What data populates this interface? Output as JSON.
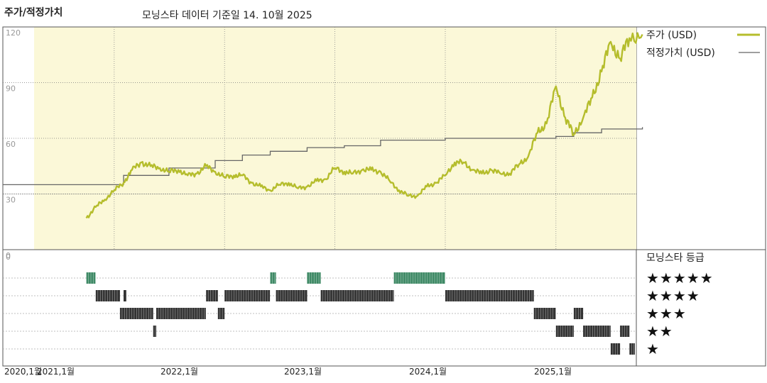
{
  "header": {
    "title": "주가/적정가치",
    "subtitle": "모닝스타 데이터 기준일 14. 10월 2025"
  },
  "legend": {
    "price_label": "주가 (USD)",
    "fair_label": "적정가치 (USD)",
    "rating_title": "모닝스타 등급",
    "stars": [
      "★★★★★",
      "★★★★",
      "★★★",
      "★★",
      "★"
    ]
  },
  "colors": {
    "price": "#b5bd2c",
    "fair": "#666666",
    "plot_bg": "#fbf8d8",
    "rating5": "#3f8a66",
    "rating_other": "#333333"
  },
  "chart_data": {
    "type": "line",
    "x_ticks": [
      "2020,1월",
      "2021,1월",
      "2022,1월",
      "2023,1월",
      "2024,1월",
      "2025,1월"
    ],
    "y_ticks": [
      0,
      30,
      60,
      90,
      120
    ],
    "ylim": [
      0,
      120
    ],
    "grid": true,
    "series": [
      {
        "name": "주가 (USD)",
        "points": [
          [
            "2020-10-01",
            17
          ],
          [
            "2020-11-01",
            23
          ],
          [
            "2020-12-01",
            27
          ],
          [
            "2021-01-01",
            32
          ],
          [
            "2021-02-01",
            36
          ],
          [
            "2021-03-01",
            43
          ],
          [
            "2021-04-01",
            47
          ],
          [
            "2021-05-01",
            45
          ],
          [
            "2021-06-01",
            44
          ],
          [
            "2021-07-01",
            42
          ],
          [
            "2021-08-01",
            43
          ],
          [
            "2021-09-01",
            40
          ],
          [
            "2021-10-01",
            41
          ],
          [
            "2021-11-01",
            45
          ],
          [
            "2021-12-01",
            42
          ],
          [
            "2022-01-01",
            39
          ],
          [
            "2022-02-01",
            40
          ],
          [
            "2022-03-01",
            40
          ],
          [
            "2022-04-01",
            36
          ],
          [
            "2022-05-01",
            34
          ],
          [
            "2022-06-01",
            32
          ],
          [
            "2022-07-01",
            35
          ],
          [
            "2022-08-01",
            36
          ],
          [
            "2022-09-01",
            33
          ],
          [
            "2022-10-01",
            34
          ],
          [
            "2022-11-01",
            37
          ],
          [
            "2022-12-01",
            38
          ],
          [
            "2023-01-01",
            44
          ],
          [
            "2023-02-01",
            42
          ],
          [
            "2023-03-01",
            41
          ],
          [
            "2023-04-01",
            43
          ],
          [
            "2023-05-01",
            43
          ],
          [
            "2023-06-01",
            42
          ],
          [
            "2023-07-01",
            37
          ],
          [
            "2023-08-01",
            32
          ],
          [
            "2023-09-01",
            29
          ],
          [
            "2023-10-01",
            29
          ],
          [
            "2023-11-01",
            34
          ],
          [
            "2023-12-01",
            36
          ],
          [
            "2024-01-01",
            40
          ],
          [
            "2024-02-01",
            47
          ],
          [
            "2024-03-01",
            47
          ],
          [
            "2024-04-01",
            43
          ],
          [
            "2024-05-01",
            41
          ],
          [
            "2024-06-01",
            43
          ],
          [
            "2024-07-01",
            41
          ],
          [
            "2024-08-01",
            41
          ],
          [
            "2024-09-01",
            46
          ],
          [
            "2024-10-01",
            50
          ],
          [
            "2024-11-01",
            63
          ],
          [
            "2024-12-01",
            68
          ],
          [
            "2025-01-01",
            88
          ],
          [
            "2025-02-01",
            71
          ],
          [
            "2025-03-01",
            62
          ],
          [
            "2025-04-01",
            71
          ],
          [
            "2025-05-01",
            82
          ],
          [
            "2025-06-01",
            96
          ],
          [
            "2025-07-01",
            112
          ],
          [
            "2025-08-01",
            103
          ],
          [
            "2025-09-01",
            114
          ],
          [
            "2025-10-14",
            116
          ]
        ]
      },
      {
        "name": "적정가치 (USD)",
        "step": true,
        "points": [
          [
            "2020-10-01",
            35
          ],
          [
            "2021-02-01",
            40
          ],
          [
            "2021-07-01",
            44
          ],
          [
            "2021-12-01",
            48
          ],
          [
            "2022-03-01",
            51
          ],
          [
            "2022-06-01",
            53
          ],
          [
            "2022-10-01",
            55
          ],
          [
            "2023-02-01",
            56
          ],
          [
            "2023-06-01",
            59
          ],
          [
            "2024-01-01",
            60
          ],
          [
            "2024-10-01",
            60
          ],
          [
            "2025-01-01",
            61
          ],
          [
            "2025-03-01",
            63
          ],
          [
            "2025-06-01",
            65
          ],
          [
            "2025-10-14",
            66
          ]
        ]
      }
    ],
    "rating_bands": [
      {
        "stars": 5,
        "ranges": [
          [
            "2020-10-01",
            "2020-10-31"
          ],
          [
            "2022-06-01",
            "2022-06-20"
          ],
          [
            "2022-10-01",
            "2022-11-15"
          ],
          [
            "2023-07-15",
            "2023-12-31"
          ]
        ]
      },
      {
        "stars": 4,
        "ranges": [
          [
            "2020-11-01",
            "2021-01-20"
          ],
          [
            "2021-02-01",
            "2021-02-10"
          ],
          [
            "2021-11-01",
            "2021-12-10"
          ],
          [
            "2022-01-01",
            "2022-05-31"
          ],
          [
            "2022-06-20",
            "2022-10-01"
          ],
          [
            "2022-11-15",
            "2023-07-15"
          ],
          [
            "2024-01-01",
            "2024-10-20"
          ]
        ]
      },
      {
        "stars": 3,
        "ranges": [
          [
            "2021-01-20",
            "2021-05-10"
          ],
          [
            "2021-05-20",
            "2021-10-31"
          ],
          [
            "2021-12-10",
            "2022-01-01"
          ],
          [
            "2024-10-20",
            "2024-12-31"
          ],
          [
            "2025-03-01",
            "2025-04-01"
          ]
        ]
      },
      {
        "stars": 2,
        "ranges": [
          [
            "2021-05-10",
            "2021-05-20"
          ],
          [
            "2025-01-01",
            "2025-03-01"
          ],
          [
            "2025-04-01",
            "2025-07-01"
          ],
          [
            "2025-08-01",
            "2025-09-01"
          ]
        ]
      },
      {
        "stars": 1,
        "ranges": [
          [
            "2025-07-01",
            "2025-08-01"
          ],
          [
            "2025-09-01",
            "2025-10-14"
          ]
        ]
      }
    ]
  }
}
